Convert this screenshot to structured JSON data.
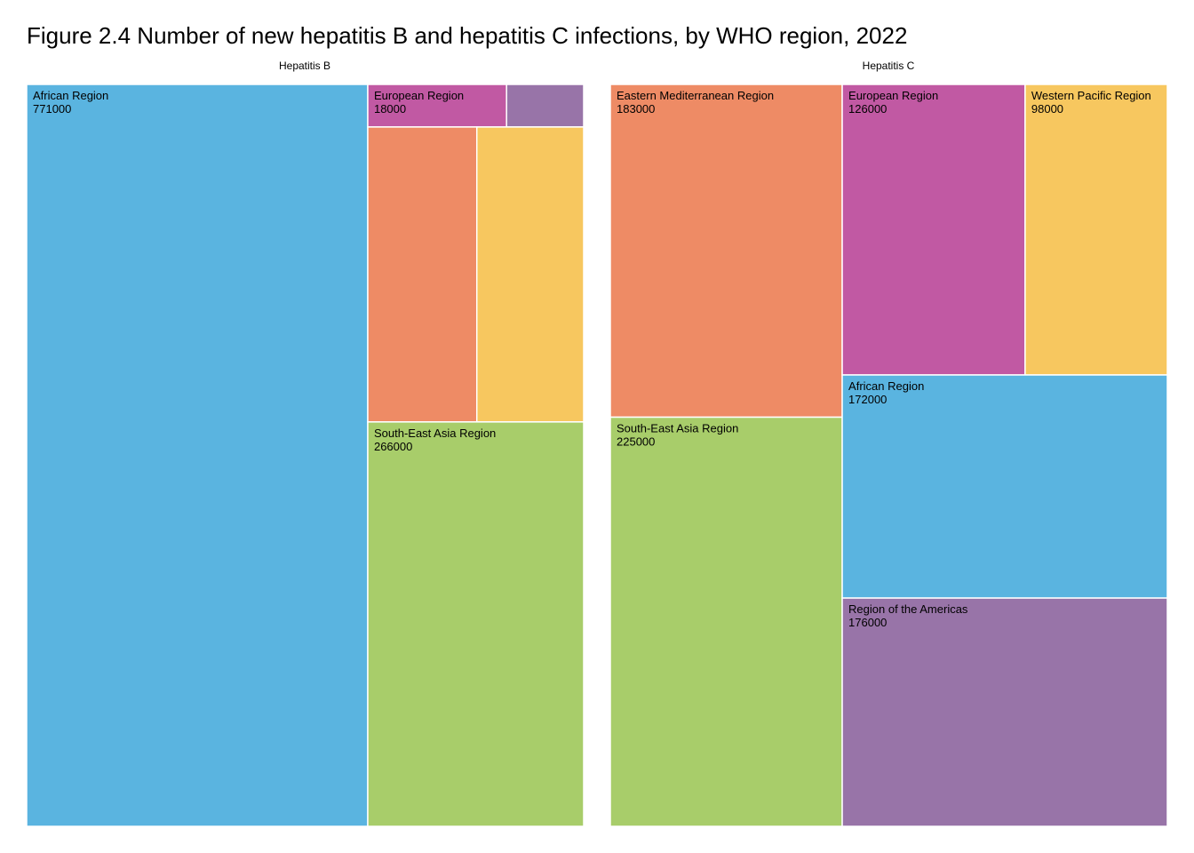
{
  "title": "Figure 2.4 Number of new hepatitis B and hepatitis C infections, by WHO region, 2022",
  "colors": {
    "African Region": "#5AB4E0",
    "European Region": "#C159A3",
    "Region of the Americas": "#9874A8",
    "Eastern Mediterranean Region": "#EE8B65",
    "Western Pacific Region": "#F7C75F",
    "South-East Asia Region": "#A8CD6A",
    "border": "#FFFFFF"
  },
  "chart_data": [
    {
      "type": "treemap",
      "title": "Hepatitis B",
      "items": [
        {
          "name": "African Region",
          "value": 771000,
          "label_shown": true
        },
        {
          "name": "South-East Asia Region",
          "value": 266000,
          "label_shown": true
        },
        {
          "name": "Eastern Mediterranean Region",
          "value": 98000,
          "label_shown": false
        },
        {
          "name": "Western Pacific Region",
          "value": 96000,
          "label_shown": false
        },
        {
          "name": "European Region",
          "value": 18000,
          "label_shown": true
        },
        {
          "name": "Region of the Americas",
          "value": 10000,
          "label_shown": false
        }
      ]
    },
    {
      "type": "treemap",
      "title": "Hepatitis C",
      "items": [
        {
          "name": "South-East Asia Region",
          "value": 225000,
          "label_shown": true
        },
        {
          "name": "Eastern Mediterranean Region",
          "value": 183000,
          "label_shown": true
        },
        {
          "name": "Region of the Americas",
          "value": 176000,
          "label_shown": true
        },
        {
          "name": "African Region",
          "value": 172000,
          "label_shown": true
        },
        {
          "name": "European Region",
          "value": 126000,
          "label_shown": true
        },
        {
          "name": "Western Pacific Region",
          "value": 98000,
          "label_shown": true
        }
      ]
    }
  ]
}
